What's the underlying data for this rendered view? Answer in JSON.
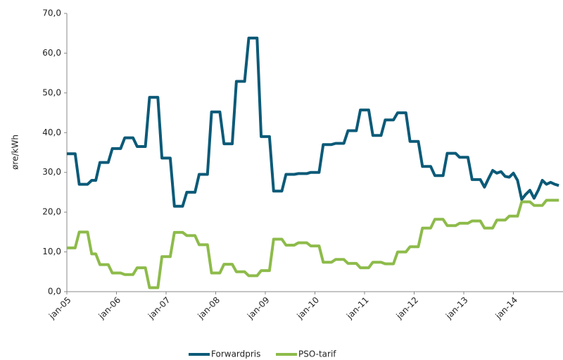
{
  "chart_data": {
    "type": "line",
    "y_label": "øre/kWh",
    "categories": [
      "jan-05",
      null,
      null,
      null,
      null,
      null,
      null,
      null,
      null,
      null,
      null,
      null,
      "jan-06",
      null,
      null,
      null,
      null,
      null,
      null,
      null,
      null,
      null,
      null,
      null,
      "jan-07",
      null,
      null,
      null,
      null,
      null,
      null,
      null,
      null,
      null,
      null,
      null,
      "jan-08",
      null,
      null,
      null,
      null,
      null,
      null,
      null,
      null,
      null,
      null,
      null,
      "jan-09",
      null,
      null,
      null,
      null,
      null,
      null,
      null,
      null,
      null,
      null,
      null,
      "jan-10",
      null,
      null,
      null,
      null,
      null,
      null,
      null,
      null,
      null,
      null,
      null,
      "jan-11",
      null,
      null,
      null,
      null,
      null,
      null,
      null,
      null,
      null,
      null,
      null,
      "jan-12",
      null,
      null,
      null,
      null,
      null,
      null,
      null,
      null,
      null,
      null,
      null,
      "jan-13",
      null,
      null,
      null,
      null,
      null,
      null,
      null,
      null,
      null,
      null,
      null,
      "jan-14",
      null,
      null,
      null,
      null,
      null,
      null,
      null,
      null,
      null,
      null,
      null
    ],
    "series": [
      {
        "name": "Forwardpris",
        "color": "#0b5a78",
        "values": [
          34.7,
          34.7,
          34.7,
          27,
          27,
          27,
          28,
          28,
          32.5,
          32.5,
          32.5,
          36,
          36,
          36,
          38.7,
          38.7,
          38.7,
          36.5,
          36.5,
          36.5,
          48.9,
          48.9,
          48.9,
          33.6,
          33.6,
          33.6,
          21.5,
          21.5,
          21.5,
          25,
          25,
          25,
          29.5,
          29.5,
          29.5,
          45.2,
          45.2,
          45.2,
          37.2,
          37.2,
          37.2,
          52.9,
          52.9,
          52.9,
          63.8,
          63.8,
          63.8,
          39,
          39,
          39,
          25.3,
          25.3,
          25.3,
          29.5,
          29.5,
          29.5,
          29.7,
          29.7,
          29.7,
          30,
          30,
          30,
          37,
          37,
          37,
          37.3,
          37.3,
          37.3,
          40.5,
          40.5,
          40.5,
          45.7,
          45.7,
          45.7,
          39.3,
          39.3,
          39.3,
          43.2,
          43.2,
          43.2,
          45,
          45,
          45,
          37.8,
          37.8,
          37.8,
          31.5,
          31.5,
          31.5,
          29.2,
          29.2,
          29.2,
          34.8,
          34.8,
          34.8,
          33.8,
          33.8,
          33.8,
          28.2,
          28.2,
          28.2,
          26.3,
          28.5,
          30.5,
          29.8,
          30.2,
          29,
          28.8,
          29.8,
          28,
          23.2,
          24.5,
          25.5,
          23.5,
          25.5,
          28,
          27,
          27.5,
          27,
          26.7
        ]
      },
      {
        "name": "PSO-tarif",
        "color": "#8dbb4a",
        "values": [
          11,
          11,
          11,
          15,
          15,
          15,
          9.5,
          9.5,
          6.8,
          6.8,
          6.8,
          4.7,
          4.7,
          4.7,
          4.3,
          4.3,
          4.3,
          6,
          6,
          6,
          1,
          1,
          1,
          8.8,
          8.8,
          8.8,
          14.9,
          14.9,
          14.9,
          14.1,
          14.1,
          14.1,
          11.8,
          11.8,
          11.8,
          4.7,
          4.7,
          4.7,
          6.9,
          6.9,
          6.9,
          5,
          5,
          5,
          4,
          4,
          4,
          5.3,
          5.3,
          5.3,
          13.2,
          13.2,
          13.2,
          11.7,
          11.7,
          11.7,
          12.3,
          12.3,
          12.3,
          11.5,
          11.5,
          11.5,
          7.4,
          7.4,
          7.4,
          8.1,
          8.1,
          8.1,
          7.1,
          7.1,
          7.1,
          6,
          6,
          6,
          7.4,
          7.4,
          7.4,
          7,
          7,
          7,
          10,
          10,
          10,
          11.3,
          11.3,
          11.3,
          16,
          16,
          16,
          18.2,
          18.2,
          18.2,
          16.6,
          16.6,
          16.6,
          17.2,
          17.2,
          17.2,
          17.8,
          17.8,
          17.8,
          16,
          16,
          16,
          18,
          18,
          18,
          19,
          19,
          19,
          22.6,
          22.6,
          22.6,
          21.7,
          21.7,
          21.7,
          23,
          23,
          23,
          23
        ]
      }
    ],
    "ylim": [
      0,
      70
    ],
    "yticks": [
      {
        "value": 0,
        "label": "0,0"
      },
      {
        "value": 10,
        "label": "10,0"
      },
      {
        "value": 20,
        "label": "20,0"
      },
      {
        "value": 30,
        "label": "30,0"
      },
      {
        "value": 40,
        "label": "40,0"
      },
      {
        "value": 50,
        "label": "50,0"
      },
      {
        "value": 60,
        "label": "60,0"
      },
      {
        "value": 70,
        "label": "70,0"
      }
    ],
    "grid": false,
    "legend": "bottom"
  }
}
